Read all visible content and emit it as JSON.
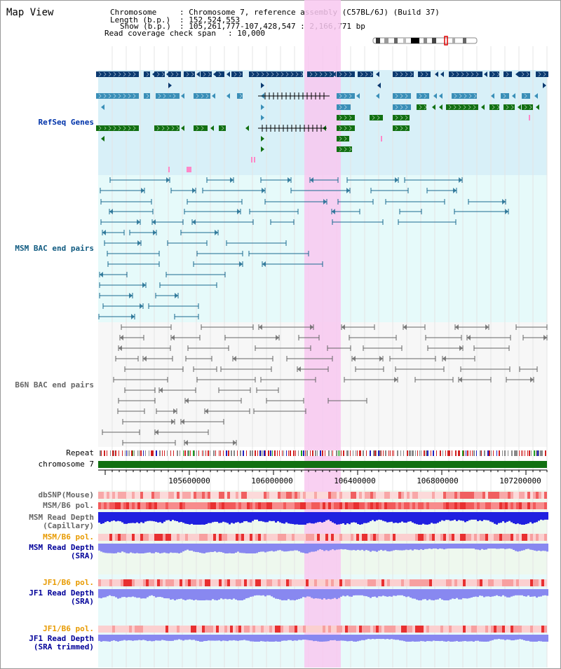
{
  "page": {
    "title": "Map View",
    "header": {
      "chromosome_key": "Chromosome",
      "chromosome_value": ": Chromosome 7, reference assembly (C57BL/6J) (Build 37)",
      "length_key": "Length (b.p.)",
      "length_value": ": 152,524,553",
      "show_key": "Show (b.p.)",
      "show_value": ": 105,261,777-107,428,547 : 2,166,771 bp",
      "coverage_key": "Read coverage check span",
      "coverage_value": ": 10,000"
    }
  },
  "tracks": {
    "refseq": "RefSeq Genes",
    "msm_bac": "MSM BAC end pairs",
    "b6n_bac": "B6N BAC end pairs",
    "repeat": "Repeat",
    "chromosome": "chromosome 7",
    "dbsnp": "dbSNP(Mouse)",
    "msm_b6_pol_1": "MSM/B6 pol.",
    "msm_depth_cap_1": "MSM Read Depth",
    "msm_depth_cap_2": "(Capillary)",
    "msm_b6_pol_2": "MSM/B6 pol.",
    "msm_depth_sra_1": "MSM Read Depth",
    "msm_depth_sra_2": "(SRA)",
    "jf1_b6_pol_1": "JF1/B6 pol.",
    "jf1_depth_sra_1": "JF1 Read Depth",
    "jf1_depth_sra_2": "(SRA)",
    "jf1_b6_pol_2": "JF1/B6 pol.",
    "jf1_depth_trim_1": "JF1 Read Depth",
    "jf1_depth_trim_2": "(SRA trimmed)"
  },
  "axis": {
    "ticks": [
      "105600000",
      "106000000",
      "106400000",
      "106800000",
      "107200000"
    ]
  },
  "colors": {
    "refseq_bg": "#d8f0f8",
    "msm_bg": "#e6fafa",
    "b6n_bg": "#f7f7f7",
    "highlight": "#f8c8f0",
    "gene_dark": "#0b3a70",
    "gene_mid": "#3a8fb8",
    "gene_green": "#127012",
    "msm_line": "#1a6a90",
    "b6n_line": "#666666",
    "chrom_bar": "#127012",
    "snp": "#f07070",
    "depth_blue": "#2020e0",
    "depth_light": "#8888f0",
    "label_blue": "#0033aa",
    "label_teal": "#0f5a80",
    "label_gray": "#666666",
    "label_orange": "#e89a00",
    "label_darkblue": "#000099"
  }
}
